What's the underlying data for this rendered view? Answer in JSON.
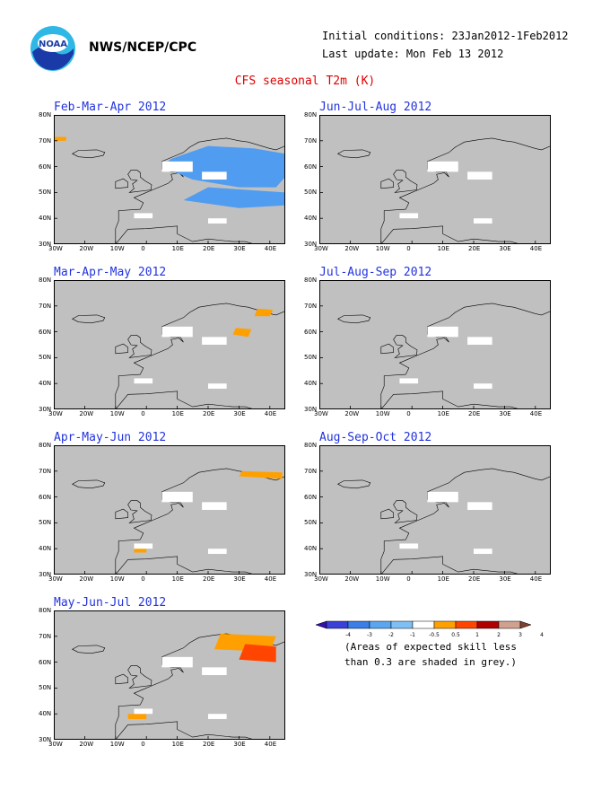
{
  "header": {
    "agency": "NWS/NCEP/CPC",
    "initial_conditions": "Initial conditions: 23Jan2012-1Feb2012",
    "last_update": "Last update: Mon Feb 13 2012",
    "title": "CFS seasonal T2m (K)"
  },
  "logo": {
    "icon": "noaa-logo-icon",
    "text": "NOAA"
  },
  "axes": {
    "lat_labels": [
      "80N",
      "70N",
      "60N",
      "50N",
      "40N",
      "30N"
    ],
    "lon_labels": [
      "30W",
      "20W",
      "10W",
      "0",
      "10E",
      "20E",
      "30E",
      "40E"
    ]
  },
  "panels": [
    {
      "title": "Feb-Mar-Apr 2012"
    },
    {
      "title": "Jun-Jul-Aug 2012"
    },
    {
      "title": "Mar-Apr-May 2012"
    },
    {
      "title": "Jul-Aug-Sep 2012"
    },
    {
      "title": "Apr-May-Jun 2012"
    },
    {
      "title": "Aug-Sep-Oct 2012"
    },
    {
      "title": "May-Jun-Jul 2012"
    }
  ],
  "legend": {
    "labels": [
      "-4",
      "-3",
      "-2",
      "-1",
      "-0.5",
      "0.5",
      "1",
      "2",
      "3",
      "4"
    ],
    "colors": [
      "#3310b0",
      "#3a40d8",
      "#3a7ee8",
      "#5aa6f0",
      "#7fc0f4",
      "#ffffff",
      "#ffa000",
      "#ff4500",
      "#b00000",
      "#d0a090",
      "#804030"
    ],
    "note_line1": "(Areas of expected skill less",
    "note_line2": "than 0.3 are shaded in grey.)"
  },
  "colors": {
    "skill_grey": "#c0c0c0",
    "blue": "#4f9cf0",
    "orange": "#ffa000",
    "red": "#ff4500",
    "title_red": "#e00000",
    "panel_title_blue": "#2233dd"
  }
}
